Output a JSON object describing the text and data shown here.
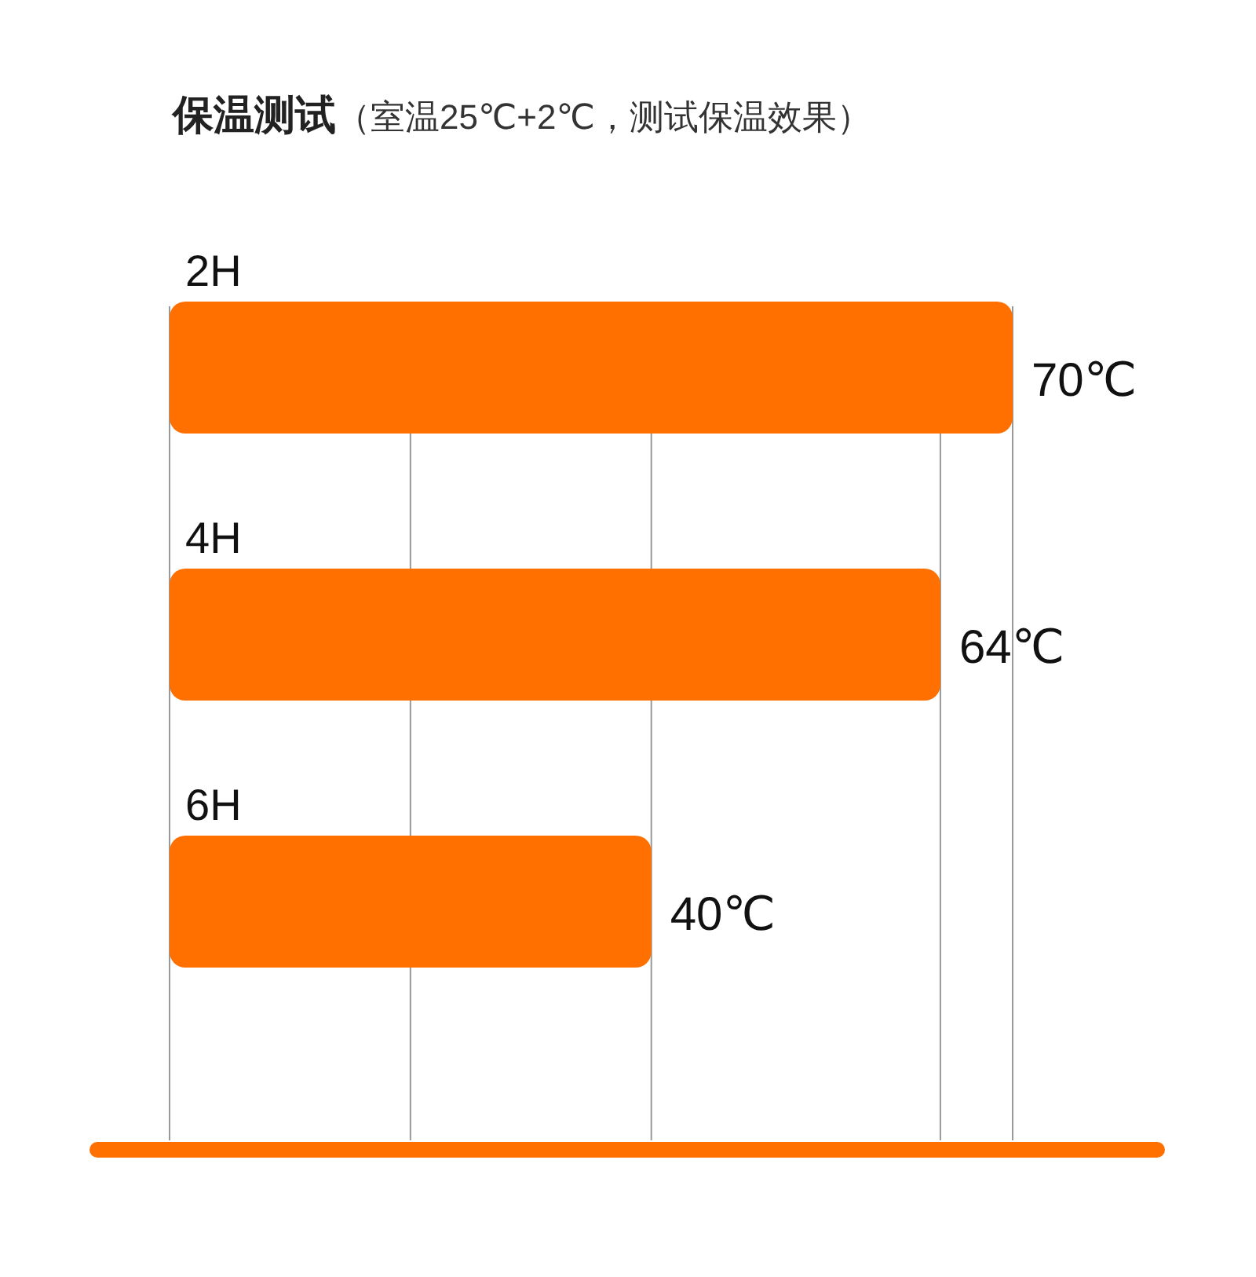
{
  "chart_data": {
    "type": "bar",
    "orientation": "horizontal",
    "title": "保温测试",
    "subtitle": "（室温25℃+2℃，测试保温效果）",
    "categories": [
      "2H",
      "4H",
      "6H"
    ],
    "values": [
      70,
      64,
      40
    ],
    "value_labels": [
      "70℃",
      "64℃",
      "40℃"
    ],
    "color": "#ff7000",
    "xlim": [
      0,
      70
    ],
    "xticks": [
      {
        "value": 0,
        "label": null
      },
      {
        "value": 20,
        "label": null
      },
      {
        "value": 40,
        "label": null
      },
      {
        "value": 64,
        "label": null
      },
      {
        "value": 70,
        "label": null
      }
    ],
    "grid": "x"
  }
}
